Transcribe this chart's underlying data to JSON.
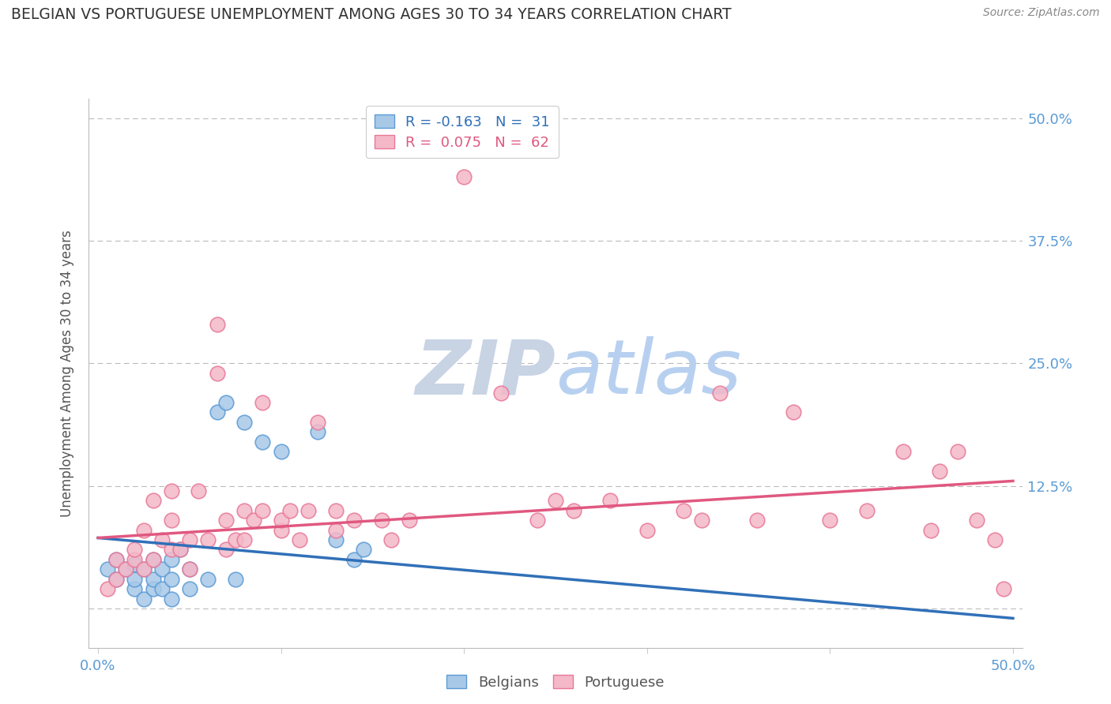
{
  "title": "BELGIAN VS PORTUGUESE UNEMPLOYMENT AMONG AGES 30 TO 34 YEARS CORRELATION CHART",
  "source": "Source: ZipAtlas.com",
  "ylabel": "Unemployment Among Ages 30 to 34 years",
  "xlim": [
    -0.005,
    0.505
  ],
  "ylim": [
    -0.04,
    0.52
  ],
  "xticks": [
    0.0,
    0.1,
    0.2,
    0.3,
    0.4,
    0.5
  ],
  "xtick_labels": [
    "0.0%",
    "",
    "",
    "",
    "",
    "50.0%"
  ],
  "ytick_labels": [
    "50.0%",
    "37.5%",
    "25.0%",
    "12.5%",
    ""
  ],
  "ytick_values": [
    0.5,
    0.375,
    0.25,
    0.125,
    0.0
  ],
  "legend_r_blue": "R = -0.163",
  "legend_n_blue": "N =  31",
  "legend_r_pink": "R =  0.075",
  "legend_n_pink": "N =  62",
  "blue_color": "#a8c8e8",
  "pink_color": "#f4b8c8",
  "blue_edge_color": "#5b9bd5",
  "pink_edge_color": "#e87898",
  "line_blue_color": "#3070b8",
  "line_pink_color": "#e05880",
  "title_color": "#333333",
  "axis_label_color": "#555555",
  "tick_color": "#5b9bd5",
  "watermark_color_zip": "#c8d4e4",
  "watermark_color_atlas": "#b8d0f0",
  "background_color": "#ffffff",
  "blue_scatter_x": [
    0.005,
    0.01,
    0.01,
    0.015,
    0.02,
    0.02,
    0.02,
    0.025,
    0.025,
    0.03,
    0.03,
    0.03,
    0.035,
    0.035,
    0.04,
    0.04,
    0.04,
    0.045,
    0.05,
    0.05,
    0.06,
    0.065,
    0.07,
    0.075,
    0.08,
    0.09,
    0.1,
    0.12,
    0.13,
    0.14,
    0.145
  ],
  "blue_scatter_y": [
    0.04,
    0.03,
    0.05,
    0.04,
    0.02,
    0.03,
    0.045,
    0.01,
    0.04,
    0.02,
    0.03,
    0.05,
    0.02,
    0.04,
    0.01,
    0.03,
    0.05,
    0.06,
    0.02,
    0.04,
    0.03,
    0.2,
    0.21,
    0.03,
    0.19,
    0.17,
    0.16,
    0.18,
    0.07,
    0.05,
    0.06
  ],
  "pink_scatter_x": [
    0.005,
    0.01,
    0.01,
    0.015,
    0.02,
    0.02,
    0.025,
    0.025,
    0.03,
    0.03,
    0.035,
    0.04,
    0.04,
    0.04,
    0.045,
    0.05,
    0.05,
    0.055,
    0.06,
    0.065,
    0.065,
    0.07,
    0.07,
    0.075,
    0.08,
    0.08,
    0.085,
    0.09,
    0.09,
    0.1,
    0.1,
    0.105,
    0.11,
    0.115,
    0.12,
    0.13,
    0.13,
    0.14,
    0.155,
    0.16,
    0.17,
    0.2,
    0.22,
    0.24,
    0.25,
    0.26,
    0.28,
    0.3,
    0.32,
    0.33,
    0.34,
    0.36,
    0.38,
    0.4,
    0.42,
    0.44,
    0.455,
    0.46,
    0.47,
    0.48,
    0.49,
    0.495
  ],
  "pink_scatter_y": [
    0.02,
    0.03,
    0.05,
    0.04,
    0.05,
    0.06,
    0.04,
    0.08,
    0.05,
    0.11,
    0.07,
    0.06,
    0.09,
    0.12,
    0.06,
    0.04,
    0.07,
    0.12,
    0.07,
    0.24,
    0.29,
    0.06,
    0.09,
    0.07,
    0.07,
    0.1,
    0.09,
    0.21,
    0.1,
    0.08,
    0.09,
    0.1,
    0.07,
    0.1,
    0.19,
    0.08,
    0.1,
    0.09,
    0.09,
    0.07,
    0.09,
    0.44,
    0.22,
    0.09,
    0.11,
    0.1,
    0.11,
    0.08,
    0.1,
    0.09,
    0.22,
    0.09,
    0.2,
    0.09,
    0.1,
    0.16,
    0.08,
    0.14,
    0.16,
    0.09,
    0.07,
    0.02
  ],
  "blue_line_x": [
    0.0,
    0.5
  ],
  "blue_line_y": [
    0.072,
    -0.01
  ],
  "pink_line_x": [
    0.0,
    0.5
  ],
  "pink_line_y": [
    0.072,
    0.13
  ]
}
